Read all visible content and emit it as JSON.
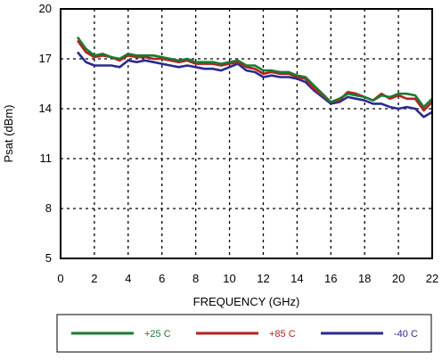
{
  "chart_data": {
    "type": "line",
    "xlabel": "FREQUENCY (GHz)",
    "ylabel": "Psat (dBm)",
    "xlim": [
      0,
      22
    ],
    "ylim": [
      5,
      20
    ],
    "xticks": [
      0,
      2,
      4,
      6,
      8,
      10,
      12,
      14,
      16,
      18,
      20,
      22
    ],
    "yticks": [
      5,
      8,
      11,
      14,
      17,
      20
    ],
    "grid": "dashed",
    "legend_position": "bottom",
    "x": [
      1,
      1.5,
      2,
      2.5,
      3,
      3.5,
      4,
      4.5,
      5,
      5.5,
      6,
      6.5,
      7,
      7.5,
      8,
      8.5,
      9,
      9.5,
      10,
      10.5,
      11,
      11.5,
      12,
      12.5,
      13,
      13.5,
      14,
      14.5,
      15,
      15.5,
      16,
      16.5,
      17,
      17.5,
      18,
      18.5,
      19,
      19.5,
      20,
      20.5,
      21,
      21.5,
      22
    ],
    "series": [
      {
        "name": "+25 C",
        "color": "#1a7a32",
        "values": [
          18.3,
          17.6,
          17.2,
          17.3,
          17.1,
          17.0,
          17.3,
          17.2,
          17.2,
          17.2,
          17.1,
          17.0,
          16.9,
          17.0,
          16.8,
          16.8,
          16.8,
          16.7,
          16.8,
          16.9,
          16.6,
          16.6,
          16.3,
          16.3,
          16.2,
          16.2,
          16.0,
          15.9,
          15.4,
          14.9,
          14.4,
          14.6,
          14.9,
          14.8,
          14.7,
          14.5,
          14.8,
          14.7,
          14.9,
          14.9,
          14.8,
          14.1,
          14.6
        ]
      },
      {
        "name": "+85 C",
        "color": "#b52020",
        "values": [
          18.1,
          17.4,
          17.1,
          17.2,
          17.1,
          16.9,
          17.2,
          17.1,
          17.1,
          17.0,
          17.0,
          16.9,
          16.8,
          16.9,
          16.7,
          16.7,
          16.7,
          16.6,
          16.7,
          16.8,
          16.5,
          16.4,
          16.1,
          16.2,
          16.1,
          16.1,
          15.9,
          15.8,
          15.2,
          14.8,
          14.4,
          14.5,
          15.0,
          14.9,
          14.7,
          14.5,
          14.9,
          14.6,
          14.8,
          14.6,
          14.6,
          13.9,
          14.4
        ]
      },
      {
        "name": "-40 C",
        "color": "#2a2a90",
        "values": [
          17.4,
          16.8,
          16.6,
          16.6,
          16.6,
          16.5,
          16.9,
          16.8,
          16.9,
          16.8,
          16.7,
          16.6,
          16.5,
          16.6,
          16.5,
          16.4,
          16.4,
          16.3,
          16.5,
          16.7,
          16.3,
          16.2,
          15.9,
          16.0,
          15.9,
          15.9,
          15.8,
          15.6,
          15.1,
          14.7,
          14.3,
          14.4,
          14.7,
          14.6,
          14.5,
          14.3,
          14.3,
          14.1,
          14.0,
          14.1,
          14.0,
          13.5,
          13.8
        ]
      }
    ]
  }
}
